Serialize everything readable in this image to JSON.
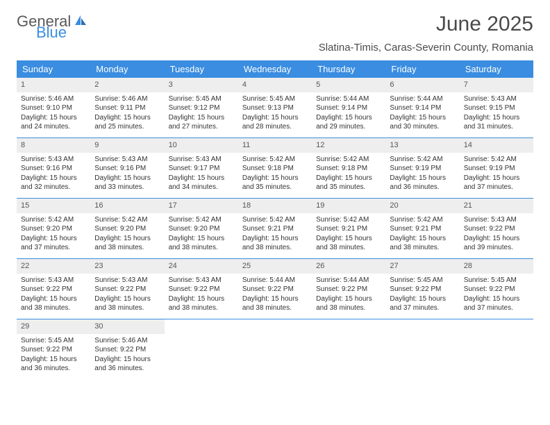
{
  "logo": {
    "part1": "General",
    "part2": "Blue"
  },
  "title": "June 2025",
  "subtitle": "Slatina-Timis, Caras-Severin County, Romania",
  "colors": {
    "accent": "#3a8de0",
    "header_text": "#ffffff",
    "daynum_bg": "#eeeeee",
    "body_text": "#333333",
    "logo_gray": "#58595b"
  },
  "day_headers": [
    "Sunday",
    "Monday",
    "Tuesday",
    "Wednesday",
    "Thursday",
    "Friday",
    "Saturday"
  ],
  "weeks": [
    [
      {
        "n": "1",
        "sr": "5:46 AM",
        "ss": "9:10 PM",
        "dl": "15 hours and 24 minutes."
      },
      {
        "n": "2",
        "sr": "5:46 AM",
        "ss": "9:11 PM",
        "dl": "15 hours and 25 minutes."
      },
      {
        "n": "3",
        "sr": "5:45 AM",
        "ss": "9:12 PM",
        "dl": "15 hours and 27 minutes."
      },
      {
        "n": "4",
        "sr": "5:45 AM",
        "ss": "9:13 PM",
        "dl": "15 hours and 28 minutes."
      },
      {
        "n": "5",
        "sr": "5:44 AM",
        "ss": "9:14 PM",
        "dl": "15 hours and 29 minutes."
      },
      {
        "n": "6",
        "sr": "5:44 AM",
        "ss": "9:14 PM",
        "dl": "15 hours and 30 minutes."
      },
      {
        "n": "7",
        "sr": "5:43 AM",
        "ss": "9:15 PM",
        "dl": "15 hours and 31 minutes."
      }
    ],
    [
      {
        "n": "8",
        "sr": "5:43 AM",
        "ss": "9:16 PM",
        "dl": "15 hours and 32 minutes."
      },
      {
        "n": "9",
        "sr": "5:43 AM",
        "ss": "9:16 PM",
        "dl": "15 hours and 33 minutes."
      },
      {
        "n": "10",
        "sr": "5:43 AM",
        "ss": "9:17 PM",
        "dl": "15 hours and 34 minutes."
      },
      {
        "n": "11",
        "sr": "5:42 AM",
        "ss": "9:18 PM",
        "dl": "15 hours and 35 minutes."
      },
      {
        "n": "12",
        "sr": "5:42 AM",
        "ss": "9:18 PM",
        "dl": "15 hours and 35 minutes."
      },
      {
        "n": "13",
        "sr": "5:42 AM",
        "ss": "9:19 PM",
        "dl": "15 hours and 36 minutes."
      },
      {
        "n": "14",
        "sr": "5:42 AM",
        "ss": "9:19 PM",
        "dl": "15 hours and 37 minutes."
      }
    ],
    [
      {
        "n": "15",
        "sr": "5:42 AM",
        "ss": "9:20 PM",
        "dl": "15 hours and 37 minutes."
      },
      {
        "n": "16",
        "sr": "5:42 AM",
        "ss": "9:20 PM",
        "dl": "15 hours and 38 minutes."
      },
      {
        "n": "17",
        "sr": "5:42 AM",
        "ss": "9:20 PM",
        "dl": "15 hours and 38 minutes."
      },
      {
        "n": "18",
        "sr": "5:42 AM",
        "ss": "9:21 PM",
        "dl": "15 hours and 38 minutes."
      },
      {
        "n": "19",
        "sr": "5:42 AM",
        "ss": "9:21 PM",
        "dl": "15 hours and 38 minutes."
      },
      {
        "n": "20",
        "sr": "5:42 AM",
        "ss": "9:21 PM",
        "dl": "15 hours and 38 minutes."
      },
      {
        "n": "21",
        "sr": "5:43 AM",
        "ss": "9:22 PM",
        "dl": "15 hours and 39 minutes."
      }
    ],
    [
      {
        "n": "22",
        "sr": "5:43 AM",
        "ss": "9:22 PM",
        "dl": "15 hours and 38 minutes."
      },
      {
        "n": "23",
        "sr": "5:43 AM",
        "ss": "9:22 PM",
        "dl": "15 hours and 38 minutes."
      },
      {
        "n": "24",
        "sr": "5:43 AM",
        "ss": "9:22 PM",
        "dl": "15 hours and 38 minutes."
      },
      {
        "n": "25",
        "sr": "5:44 AM",
        "ss": "9:22 PM",
        "dl": "15 hours and 38 minutes."
      },
      {
        "n": "26",
        "sr": "5:44 AM",
        "ss": "9:22 PM",
        "dl": "15 hours and 38 minutes."
      },
      {
        "n": "27",
        "sr": "5:45 AM",
        "ss": "9:22 PM",
        "dl": "15 hours and 37 minutes."
      },
      {
        "n": "28",
        "sr": "5:45 AM",
        "ss": "9:22 PM",
        "dl": "15 hours and 37 minutes."
      }
    ],
    [
      {
        "n": "29",
        "sr": "5:45 AM",
        "ss": "9:22 PM",
        "dl": "15 hours and 36 minutes."
      },
      {
        "n": "30",
        "sr": "5:46 AM",
        "ss": "9:22 PM",
        "dl": "15 hours and 36 minutes."
      },
      null,
      null,
      null,
      null,
      null
    ]
  ],
  "labels": {
    "sunrise_prefix": "Sunrise: ",
    "sunset_prefix": "Sunset: ",
    "daylight_prefix": "Daylight: "
  }
}
